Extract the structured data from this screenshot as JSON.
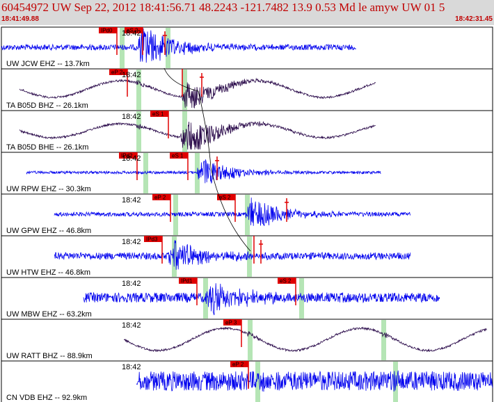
{
  "header": {
    "title": "60454972 UW Sep 22, 2012 18:41:56.71   48.2243 -121.7482 13.9 0.53 Md le amyw UW 01    5",
    "start_time": "18:41:49.88",
    "end_time": "18:42:31.45"
  },
  "colors": {
    "blue": "#0000ee",
    "purple": "#2a0a4a",
    "pick": "#e00000",
    "band": "#a8e0a8",
    "header_text": "#c00000"
  },
  "traces": [
    {
      "label": "UW JCW EHZ -- 13.7km",
      "time_label": "18:42",
      "color": "blue",
      "x_start": 2,
      "x_end": 512,
      "amp": 4,
      "mode": "quake",
      "burst": 205,
      "burst_amp": 30,
      "bands": [
        172,
        238
      ],
      "tick": 237,
      "picks": [
        {
          "x": 168,
          "label": "IPd0"
        },
        {
          "x": 205,
          "label": "eS 2"
        }
      ]
    },
    {
      "label": "TA B05D BHZ -- 26.1km",
      "time_label": "18:42",
      "color": "purple",
      "x_start": 28,
      "x_end": 540,
      "amp": 12,
      "mode": "wave",
      "burst": 270,
      "burst_amp": 22,
      "bands": [
        196,
        262
      ],
      "tick": 290,
      "picks": [
        {
          "x": 183,
          "label": "eP 2"
        },
        {
          "x": 262,
          "label": ""
        }
      ]
    },
    {
      "label": "TA B05D BHE -- 26.1km",
      "time_label": "18:42",
      "color": "purple",
      "x_start": 28,
      "x_end": 540,
      "amp": 10,
      "mode": "wave",
      "burst": 268,
      "burst_amp": 28,
      "bands": [
        196,
        262
      ],
      "tick": 0,
      "picks": [
        {
          "x": 242,
          "label": "eS 1"
        }
      ]
    },
    {
      "label": "UW RPW EHZ -- 30.3km",
      "time_label": "18:42",
      "color": "blue",
      "x_start": 38,
      "x_end": 548,
      "amp": 2,
      "mode": "quake",
      "burst": 290,
      "burst_amp": 22,
      "bands": [
        206,
        280
      ],
      "tick": 312,
      "picks": [
        {
          "x": 197,
          "label": "IPd2"
        },
        {
          "x": 270,
          "label": "eS 1"
        }
      ]
    },
    {
      "label": "UW GPW EHZ -- 46.8km",
      "time_label": "18:42",
      "color": "blue",
      "x_start": 78,
      "x_end": 590,
      "amp": 3,
      "mode": "quake",
      "burst": 362,
      "burst_amp": 24,
      "bands": [
        249,
        352
      ],
      "tick": 412,
      "picks": [
        {
          "x": 245,
          "label": "eP 2"
        },
        {
          "x": 338,
          "label": "eS 2"
        }
      ]
    },
    {
      "label": "UW HTW EHZ -- 46.8km",
      "time_label": "18:42",
      "color": "blue",
      "x_start": 78,
      "x_end": 590,
      "amp": 5,
      "mode": "quake",
      "burst": 250,
      "burst_amp": 22,
      "bands": [
        247,
        355
      ],
      "tick": 375,
      "picks": [
        {
          "x": 233,
          "label": "IPd3"
        },
        {
          "x": 365,
          "label": ""
        }
      ]
    },
    {
      "label": "UW MBW EHZ -- 63.2km",
      "time_label": "18:42",
      "color": "blue",
      "x_start": 120,
      "x_end": 632,
      "amp": 7,
      "mode": "quake",
      "burst": 305,
      "burst_amp": 24,
      "bands": [
        292,
        430
      ],
      "tick": 0,
      "picks": [
        {
          "x": 283,
          "label": "IPd1"
        },
        {
          "x": 425,
          "label": "eS 2"
        }
      ]
    },
    {
      "label": "UW RATT BHZ -- 88.9km",
      "time_label": "18:42",
      "color": "purple",
      "x_start": 178,
      "x_end": 700,
      "amp": 16,
      "mode": "wave",
      "burst": 0,
      "burst_amp": 0,
      "bands": [
        356,
        548
      ],
      "tick": 0,
      "picks": [
        {
          "x": 347,
          "label": "eP 3"
        }
      ]
    },
    {
      "label": "CN VDB EHZ -- 92.9km",
      "time_label": "18:42",
      "color": "blue",
      "x_start": 196,
      "x_end": 708,
      "amp": 14,
      "mode": "noise",
      "burst": 0,
      "burst_amp": 0,
      "bands": [
        367,
        565
      ],
      "tick": 0,
      "picks": [
        {
          "x": 357,
          "label": "eP 2"
        }
      ]
    }
  ]
}
